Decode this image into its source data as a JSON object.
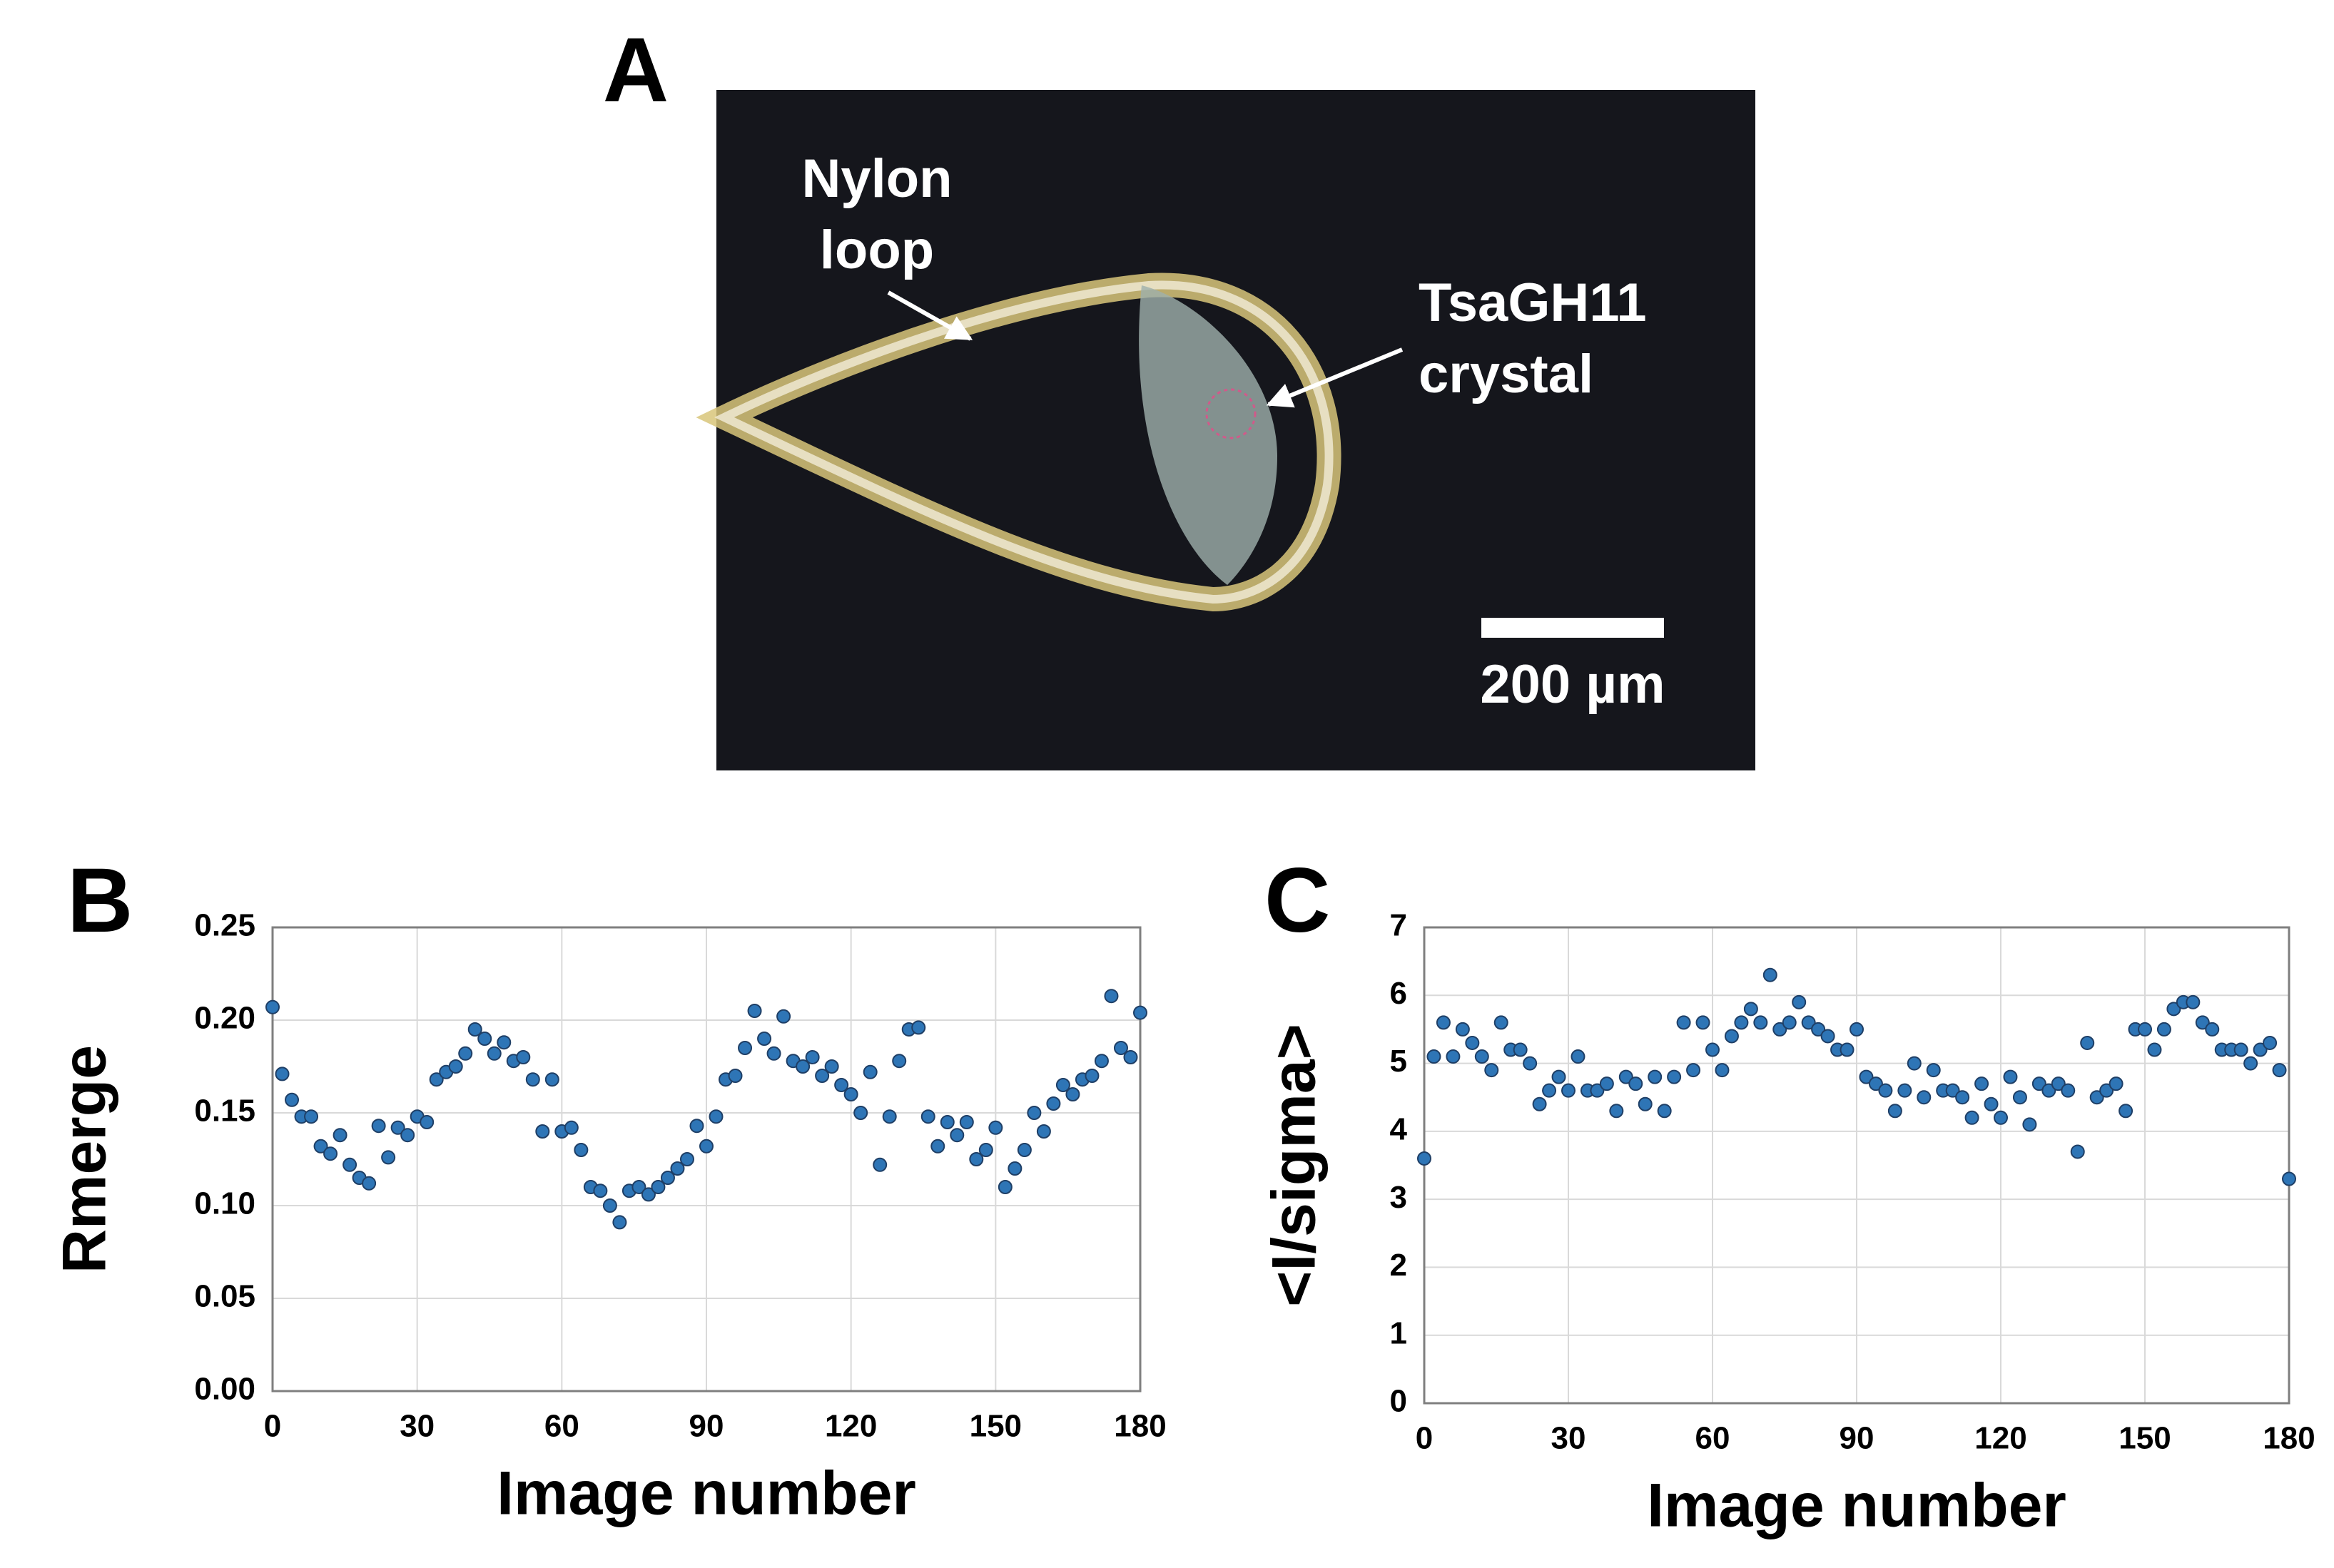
{
  "photo": {
    "panel_label": "A",
    "annotations": [
      {
        "lines": [
          "Nylon",
          "loop"
        ]
      },
      {
        "lines": [
          "TsaGH11",
          "crystal"
        ]
      }
    ],
    "scale_bar": "200 µm"
  },
  "chart_data": [
    {
      "type": "scatter",
      "panel_label": "B",
      "xlabel": "Image number",
      "ylabel": "Rmerge",
      "color": "#2e75b6",
      "grid": true,
      "xlim": [
        0,
        180
      ],
      "xticks": [
        0,
        30,
        60,
        90,
        120,
        150,
        180
      ],
      "ylim": [
        0,
        0.25
      ],
      "yticks": [
        {
          "value": 0,
          "label": "0.00"
        },
        {
          "value": 0.05,
          "label": "0.05"
        },
        {
          "value": 0.1,
          "label": "0.10"
        },
        {
          "value": 0.15,
          "label": "0.15"
        },
        {
          "value": 0.2,
          "label": "0.20"
        },
        {
          "value": 0.25,
          "label": "0.25"
        }
      ],
      "x": [
        0,
        2,
        4,
        6,
        8,
        10,
        12,
        14,
        16,
        18,
        20,
        22,
        24,
        26,
        28,
        30,
        32,
        34,
        36,
        38,
        40,
        42,
        44,
        46,
        48,
        50,
        52,
        54,
        56,
        58,
        60,
        62,
        64,
        66,
        68,
        70,
        72,
        74,
        76,
        78,
        80,
        82,
        84,
        86,
        88,
        90,
        92,
        94,
        96,
        98,
        100,
        102,
        104,
        106,
        108,
        110,
        112,
        114,
        116,
        118,
        120,
        122,
        124,
        126,
        128,
        130,
        132,
        134,
        136,
        138,
        140,
        142,
        144,
        146,
        148,
        150,
        152,
        154,
        156,
        158,
        160,
        162,
        164,
        166,
        168,
        170,
        172,
        174,
        176,
        178,
        180
      ],
      "values": [
        0.207,
        0.171,
        0.157,
        0.148,
        0.148,
        0.132,
        0.128,
        0.138,
        0.122,
        0.115,
        0.112,
        0.143,
        0.126,
        0.142,
        0.138,
        0.148,
        0.145,
        0.168,
        0.172,
        0.175,
        0.182,
        0.195,
        0.19,
        0.182,
        0.188,
        0.178,
        0.18,
        0.168,
        0.14,
        0.168,
        0.14,
        0.142,
        0.13,
        0.11,
        0.108,
        0.1,
        0.091,
        0.108,
        0.11,
        0.106,
        0.11,
        0.115,
        0.12,
        0.125,
        0.143,
        0.132,
        0.148,
        0.168,
        0.17,
        0.185,
        0.205,
        0.19,
        0.182,
        0.202,
        0.178,
        0.175,
        0.18,
        0.17,
        0.175,
        0.165,
        0.16,
        0.15,
        0.172,
        0.122,
        0.148,
        0.178,
        0.195,
        0.196,
        0.148,
        0.132,
        0.145,
        0.138,
        0.145,
        0.125,
        0.13,
        0.142,
        0.11,
        0.12,
        0.13,
        0.15,
        0.14,
        0.155,
        0.165,
        0.16,
        0.168,
        0.17,
        0.178,
        0.213,
        0.185,
        0.18,
        0.204
      ]
    },
    {
      "type": "scatter",
      "panel_label": "C",
      "xlabel": "Image number",
      "ylabel": "<I/sigma>",
      "color": "#2e75b6",
      "grid": true,
      "xlim": [
        0,
        180
      ],
      "xticks": [
        0,
        30,
        60,
        90,
        120,
        150,
        180
      ],
      "ylim": [
        0,
        7
      ],
      "yticks": [
        0,
        1,
        2,
        3,
        4,
        5,
        6,
        7
      ],
      "x": [
        0,
        2,
        4,
        6,
        8,
        10,
        12,
        14,
        16,
        18,
        20,
        22,
        24,
        26,
        28,
        30,
        32,
        34,
        36,
        38,
        40,
        42,
        44,
        46,
        48,
        50,
        52,
        54,
        56,
        58,
        60,
        62,
        64,
        66,
        68,
        70,
        72,
        74,
        76,
        78,
        80,
        82,
        84,
        86,
        88,
        90,
        92,
        94,
        96,
        98,
        100,
        102,
        104,
        106,
        108,
        110,
        112,
        114,
        116,
        118,
        120,
        122,
        124,
        126,
        128,
        130,
        132,
        134,
        136,
        138,
        140,
        142,
        144,
        146,
        148,
        150,
        152,
        154,
        156,
        158,
        160,
        162,
        164,
        166,
        168,
        170,
        172,
        174,
        176,
        178,
        180
      ],
      "values": [
        3.6,
        5.1,
        5.6,
        5.1,
        5.5,
        5.3,
        5.1,
        4.9,
        5.6,
        5.2,
        5.2,
        5.0,
        4.4,
        4.6,
        4.8,
        4.6,
        5.1,
        4.6,
        4.6,
        4.7,
        4.3,
        4.8,
        4.7,
        4.4,
        4.8,
        4.3,
        4.8,
        5.6,
        4.9,
        5.6,
        5.2,
        4.9,
        5.4,
        5.6,
        5.8,
        5.6,
        6.3,
        5.5,
        5.6,
        5.9,
        5.6,
        5.5,
        5.4,
        5.2,
        5.2,
        5.5,
        4.8,
        4.7,
        4.6,
        4.3,
        4.6,
        5.0,
        4.5,
        4.9,
        4.6,
        4.6,
        4.5,
        4.2,
        4.7,
        4.4,
        4.2,
        4.8,
        4.5,
        4.1,
        4.7,
        4.6,
        4.7,
        4.6,
        3.7,
        5.3,
        4.5,
        4.6,
        4.7,
        4.3,
        5.5,
        5.5,
        5.2,
        5.5,
        5.8,
        5.9,
        5.9,
        5.6,
        5.5,
        5.2,
        5.2,
        5.2,
        5.0,
        5.2,
        5.3,
        4.9,
        3.3
      ]
    }
  ]
}
